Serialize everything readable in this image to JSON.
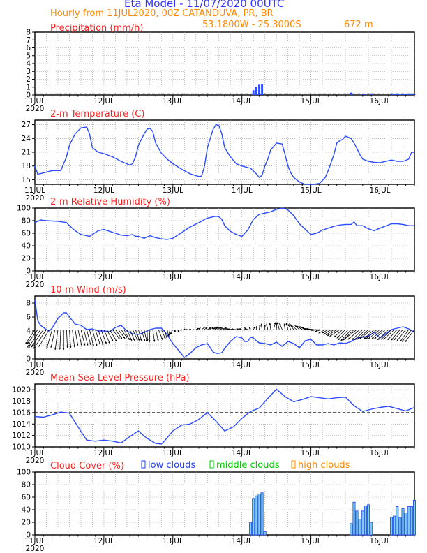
{
  "header": {
    "title": "Eta Model - 11/07/2020 00UTC",
    "subtitle": "Hourly from 11JUL2020, 00Z  CATANDUVA, PR, BR",
    "coords": "53.1800W - 25.3000S",
    "elevation": "672  m"
  },
  "colors": {
    "title": "#3333ff",
    "subtitle": "#ff8800",
    "panel_title": "#ff2020",
    "series": "#2a4bff",
    "low": "#1f3fff",
    "middle": "#00cc00",
    "high": "#ff8800",
    "bar_fill": "#7fd0e0",
    "wind": "#000000"
  },
  "x_axis": {
    "range_hours": [
      0,
      132
    ],
    "ticks": [
      {
        "hour": 0,
        "label": "11JUL",
        "year": "2020"
      },
      {
        "hour": 24,
        "label": "12JUL"
      },
      {
        "hour": 48,
        "label": "13JUL"
      },
      {
        "hour": 72,
        "label": "14JUL"
      },
      {
        "hour": 96,
        "label": "15JUL"
      },
      {
        "hour": 120,
        "label": "16JUL"
      }
    ]
  },
  "chart_data": [
    {
      "id": "precip",
      "type": "bar",
      "title": "Precipitation (mm/h)",
      "ylim": [
        0,
        8
      ],
      "yticks": [
        0,
        1,
        2,
        3,
        4,
        5,
        6,
        7,
        8
      ],
      "yticklabels": [
        "0",
        "1",
        "2",
        "3",
        "4",
        "5",
        "6",
        "7",
        "8"
      ],
      "x": [
        76,
        77,
        78,
        79,
        110,
        114,
        115,
        117,
        124,
        125,
        126,
        127,
        128,
        129,
        130,
        131,
        132
      ],
      "values": [
        0.6,
        1.0,
        1.3,
        1.4,
        0.3,
        0.1,
        0.1,
        0.2,
        0.2,
        0.1,
        0.2,
        0.1,
        0.2,
        0.1,
        0.2,
        0.2,
        0.1
      ]
    },
    {
      "id": "temp",
      "type": "line",
      "title": "2-m Temperature (C)",
      "ylim": [
        14,
        28
      ],
      "yticks": [
        15,
        18,
        21,
        24,
        27
      ],
      "yticklabels": [
        "15",
        "18",
        "21",
        "24",
        "27"
      ],
      "x": [
        0,
        1,
        3,
        6,
        9,
        11,
        12,
        14,
        16,
        18,
        19,
        20,
        22,
        24,
        27,
        30,
        33,
        34,
        35,
        36,
        38,
        39,
        40,
        41,
        42,
        44,
        46,
        48,
        51,
        54,
        57,
        58,
        59,
        60,
        62,
        63,
        64,
        65,
        66,
        68,
        70,
        72,
        75,
        77,
        78,
        79,
        80,
        81,
        82,
        84,
        86,
        87,
        88,
        89,
        90,
        92,
        94,
        96,
        97,
        99,
        101,
        102,
        104,
        105,
        106,
        107,
        108,
        110,
        111,
        112,
        113,
        114,
        116,
        118,
        120,
        122,
        124,
        126,
        127,
        128,
        130,
        131,
        132
      ],
      "values": [
        18.0,
        16.2,
        16.5,
        17.0,
        17.0,
        20.0,
        22.5,
        25.0,
        26.3,
        26.5,
        25.0,
        22.0,
        21.0,
        20.7,
        20.0,
        19.0,
        18.2,
        18.5,
        20.0,
        22.5,
        25.0,
        26.0,
        26.2,
        25.5,
        23.0,
        20.8,
        19.5,
        18.5,
        17.3,
        16.3,
        15.7,
        15.8,
        18.0,
        22.0,
        26.0,
        27.0,
        26.8,
        25.0,
        22.0,
        20.0,
        18.5,
        18.0,
        17.5,
        16.3,
        15.5,
        16.0,
        18.0,
        19.5,
        21.5,
        23.0,
        22.8,
        20.5,
        18.0,
        16.5,
        15.5,
        14.5,
        14.0,
        14.0,
        14.0,
        14.2,
        15.5,
        17.0,
        20.5,
        23.0,
        23.5,
        23.8,
        24.5,
        24.0,
        23.0,
        21.8,
        20.5,
        19.5,
        19.0,
        18.8,
        18.7,
        19.0,
        19.3,
        19.0,
        19.0,
        19.0,
        19.5,
        21.0,
        21.0
      ]
    },
    {
      "id": "rh",
      "type": "line",
      "title": "2-m Relative Humidity (%)",
      "ylim": [
        0,
        100
      ],
      "yticks": [
        0,
        20,
        40,
        60,
        80,
        100
      ],
      "yticklabels": [
        "0",
        "20",
        "40",
        "60",
        "80",
        "100"
      ],
      "x": [
        0,
        2,
        4,
        8,
        11,
        12,
        14,
        16,
        18,
        19,
        20,
        22,
        24,
        26,
        28,
        30,
        32,
        34,
        35,
        36,
        38,
        40,
        42,
        44,
        46,
        48,
        50,
        54,
        58,
        59,
        60,
        62,
        63,
        64,
        65,
        66,
        68,
        70,
        72,
        74,
        76,
        78,
        80,
        82,
        84,
        86,
        87,
        88,
        90,
        92,
        95,
        96,
        98,
        100,
        102,
        104,
        106,
        108,
        109,
        110,
        111,
        112,
        114,
        116,
        118,
        120,
        124,
        126,
        128,
        130,
        132
      ],
      "values": [
        77,
        81,
        80,
        79,
        77,
        72,
        64,
        58,
        56,
        55,
        58,
        64,
        66,
        63,
        60,
        57,
        56,
        58,
        55,
        55,
        52,
        56,
        53,
        51,
        50,
        52,
        58,
        70,
        79,
        82,
        84,
        86,
        87,
        86,
        82,
        72,
        63,
        58,
        55,
        65,
        82,
        90,
        92,
        94,
        98,
        100,
        99,
        97,
        88,
        75,
        62,
        58,
        60,
        65,
        68,
        71,
        73,
        74,
        74,
        74,
        78,
        72,
        72,
        67,
        64,
        68,
        75,
        75,
        74,
        72,
        72
      ]
    },
    {
      "id": "wind",
      "type": "line",
      "title": "10-m Wind (m/s)",
      "ylim": [
        0,
        9
      ],
      "yticks": [
        0,
        2,
        4,
        6,
        8
      ],
      "yticklabels": [
        "0",
        "2",
        "4",
        "6",
        "8"
      ],
      "x": [
        0,
        1,
        2,
        3,
        4,
        5,
        6,
        8,
        10,
        11,
        12,
        14,
        16,
        18,
        20,
        22,
        24,
        26,
        28,
        30,
        32,
        34,
        36,
        38,
        40,
        42,
        44,
        46,
        47,
        48,
        50,
        52,
        54,
        56,
        58,
        59,
        60,
        62,
        63,
        64,
        65,
        66,
        68,
        70,
        72,
        73,
        74,
        75,
        76,
        77,
        78,
        80,
        82,
        84,
        86,
        88,
        90,
        92,
        94,
        96,
        98,
        100,
        102,
        104,
        106,
        108,
        110,
        112,
        114,
        116,
        118,
        120,
        122,
        124,
        126,
        128,
        130,
        132
      ],
      "values": [
        8.5,
        5.5,
        4.8,
        4.5,
        4.2,
        4.0,
        4.4,
        5.8,
        6.6,
        6.6,
        6.0,
        5.0,
        4.8,
        4.2,
        4.3,
        4.0,
        4.0,
        3.9,
        4.5,
        4.8,
        4.0,
        3.6,
        3.5,
        3.8,
        4.2,
        4.4,
        4.4,
        3.5,
        2.8,
        2.2,
        1.2,
        0.2,
        0.8,
        1.6,
        2.0,
        2.1,
        2.2,
        1.0,
        0.8,
        0.8,
        0.9,
        1.5,
        2.5,
        3.2,
        3.0,
        2.5,
        2.5,
        3.1,
        3.0,
        2.6,
        2.3,
        2.2,
        2.0,
        2.4,
        1.8,
        2.5,
        2.2,
        1.6,
        2.6,
        2.8,
        2.0,
        2.0,
        2.2,
        2.0,
        2.3,
        2.2,
        2.5,
        3.0,
        3.1,
        3.3,
        3.8,
        3.0,
        3.6,
        4.2,
        4.4,
        4.6,
        4.3,
        3.8
      ]
    },
    {
      "id": "mslp",
      "type": "line",
      "title": "Mean Sea Level Pressure (hPa)",
      "ylim": [
        1010,
        1021
      ],
      "yticks": [
        1010,
        1012,
        1014,
        1016,
        1018,
        1020
      ],
      "yticklabels": [
        "1010",
        "1012",
        "1014",
        "1016",
        "1018",
        "1020"
      ],
      "x": [
        0,
        3,
        6,
        9,
        12,
        15,
        18,
        21,
        24,
        27,
        30,
        33,
        36,
        38,
        39,
        42,
        44,
        45,
        48,
        51,
        54,
        57,
        60,
        63,
        66,
        69,
        72,
        75,
        78,
        81,
        84,
        87,
        90,
        93,
        96,
        99,
        102,
        105,
        108,
        111,
        114,
        117,
        120,
        123,
        126,
        129,
        132
      ],
      "values": [
        1015.3,
        1015.2,
        1015.6,
        1016.1,
        1015.9,
        1013.5,
        1011.2,
        1011.0,
        1011.2,
        1011.0,
        1010.7,
        1011.8,
        1012.8,
        1011.9,
        1011.5,
        1010.6,
        1010.5,
        1011.0,
        1012.8,
        1013.8,
        1014.0,
        1014.8,
        1016.0,
        1014.5,
        1012.8,
        1013.5,
        1015.0,
        1016.2,
        1016.8,
        1018.5,
        1020.1,
        1018.8,
        1017.9,
        1018.3,
        1018.8,
        1018.6,
        1018.4,
        1018.6,
        1018.7,
        1017.2,
        1016.2,
        1016.6,
        1016.9,
        1017.1,
        1016.7,
        1016.3,
        1016.9
      ]
    },
    {
      "id": "clouds",
      "type": "bar",
      "title": "Cloud Cover (%)",
      "ylim": [
        0,
        100
      ],
      "yticks": [
        0,
        20,
        40,
        60,
        80,
        100
      ],
      "yticklabels": [
        "0",
        "20",
        "40",
        "60",
        "80",
        "100"
      ],
      "legend": [
        "low clouds",
        "middle clouds",
        "high clouds"
      ],
      "x": [
        75,
        76,
        77,
        78,
        79,
        80,
        110,
        111,
        112,
        113,
        114,
        115,
        116,
        117,
        124,
        125,
        126,
        127,
        128,
        129,
        130,
        131,
        132
      ],
      "values": [
        20,
        58,
        62,
        65,
        67,
        5,
        18,
        52,
        38,
        25,
        38,
        46,
        48,
        20,
        28,
        30,
        45,
        28,
        42,
        35,
        45,
        45,
        55
      ]
    }
  ],
  "wind_barbs": {
    "x": [
      0,
      1,
      2,
      3,
      4,
      5,
      6,
      7,
      8,
      9,
      10,
      11,
      12,
      13,
      14,
      15,
      16,
      17,
      18,
      19,
      20,
      21,
      22,
      23,
      24,
      25,
      26,
      27,
      28,
      29,
      30,
      31,
      32,
      33,
      34,
      35,
      36,
      37,
      38,
      39,
      40,
      41,
      42,
      43,
      44,
      45,
      46,
      47,
      48,
      49,
      50,
      51,
      52,
      53,
      54,
      55,
      56,
      57,
      58,
      59,
      60,
      61,
      62,
      63,
      64,
      65,
      66,
      67,
      68,
      69,
      70,
      71,
      72,
      73,
      74,
      75,
      76,
      77,
      78,
      79,
      80,
      81,
      82,
      83,
      84,
      85,
      86,
      87,
      88,
      89,
      90,
      91,
      92,
      93,
      94,
      95,
      96,
      97,
      98,
      99,
      100,
      101,
      102,
      103,
      104,
      105,
      106,
      107,
      108,
      109,
      110,
      111,
      112,
      113,
      114,
      115,
      116,
      117,
      118,
      119,
      120,
      121,
      122,
      123,
      124,
      125,
      126,
      127,
      128,
      129,
      130,
      131,
      132
    ],
    "u": [
      -2.1,
      -2.4,
      -2.6,
      -2.7,
      -2.8,
      -2.3,
      -1.2,
      -0.9,
      -0.6,
      -0.2,
      0.0,
      0.2,
      0.3,
      0.5,
      0.6,
      0.8,
      0.9,
      0.9,
      0.9,
      0.9,
      1.0,
      1.1,
      1.1,
      1.2,
      1.3,
      1.4,
      1.6,
      1.6,
      1.5,
      1.5,
      1.3,
      1.2,
      1.1,
      1.1,
      1.1,
      0.9,
      0.7,
      0.8,
      0.6,
      0.1,
      -0.1,
      0.4,
      0.6,
      0.9,
      0.9,
      0.6,
      0.4,
      -0.3,
      -0.6,
      -0.3,
      -0.1,
      -0.2,
      -0.2,
      0.1,
      0.2,
      0.3,
      0.7,
      0.4,
      0.8,
      0.6,
      0.7,
      -0.1,
      -0.3,
      -0.7,
      -1.0,
      -1.4,
      -1.9,
      -1.8,
      -1.3,
      -1.3,
      -1.1,
      -0.6,
      -0.7,
      -0.3,
      -0.8,
      -0.3,
      0.4,
      0.1,
      0.2,
      -0.2,
      0.0,
      -0.3,
      -0.2,
      0.4,
      0.1,
      -0.4,
      -0.6,
      -0.2,
      -0.4,
      -0.6,
      -1.0,
      -1.3,
      -1.0,
      -1.3,
      -1.4,
      -1.4,
      -1.6,
      -1.7,
      -1.5,
      -1.8,
      -1.6,
      -1.5,
      -1.4,
      -1.7,
      -1.8,
      -2.1,
      -2.2,
      -1.9,
      -1.9,
      -2.2,
      -2.3,
      -2.5,
      -2.8,
      -2.6,
      -2.4,
      -2.4,
      -2.4,
      -2.6,
      -2.3,
      -2.4,
      -2.5,
      -2.4,
      -2.5,
      -2.4,
      -2.3,
      -2.4,
      -2.1,
      -2.0,
      -2.1,
      -2.0,
      -1.9,
      -2.1,
      -2.1
    ],
    "v": [
      -3.2,
      -3.3,
      -3.8,
      -3.9,
      -4.2,
      -3.8,
      -4.2,
      -4.0,
      -4.5,
      -4.4,
      -4.5,
      -4.0,
      -4.1,
      -3.9,
      -3.5,
      -3.5,
      -3.5,
      -3.5,
      -3.4,
      -3.7,
      -3.6,
      -3.4,
      -3.5,
      -3.2,
      -3.1,
      -2.6,
      -2.7,
      -2.1,
      -2.1,
      -2.0,
      -1.8,
      -2.3,
      -2.5,
      -2.5,
      -2.4,
      -2.5,
      -2.5,
      -2.5,
      -2.7,
      -2.6,
      -2.8,
      -2.7,
      -2.6,
      -2.3,
      -2.1,
      -1.9,
      -1.6,
      -1.4,
      -1.1,
      -0.6,
      -0.6,
      -0.3,
      -0.1,
      0.0,
      0.1,
      -0.1,
      0.3,
      0.4,
      0.6,
      0.5,
      0.4,
      0.6,
      0.6,
      0.4,
      0.4,
      0.5,
      0.6,
      0.5,
      0.4,
      0.1,
      0.1,
      0.2,
      0.2,
      0.0,
      0.4,
      0.5,
      0.7,
      0.8,
      1.1,
      1.3,
      1.1,
      1.3,
      1.5,
      1.6,
      1.6,
      1.6,
      1.4,
      1.3,
      1.5,
      1.2,
      1.3,
      1.1,
      0.9,
      0.8,
      0.7,
      0.4,
      0.2,
      0.2,
      -0.1,
      -0.2,
      -0.4,
      -0.8,
      -0.8,
      -1.1,
      -1.2,
      -1.4,
      -1.5,
      -1.7,
      -1.9,
      -2.3,
      -2.5,
      -2.4,
      -2.1,
      -2.2,
      -2.3,
      -2.3,
      -2.2,
      -2.1,
      -2.1,
      -2.0,
      -2.0,
      -2.0,
      -2.0,
      -2.3,
      -2.2,
      -2.2,
      -2.3,
      -2.4,
      -2.4,
      -2.6,
      -2.7,
      -2.7,
      -2.8
    ]
  }
}
